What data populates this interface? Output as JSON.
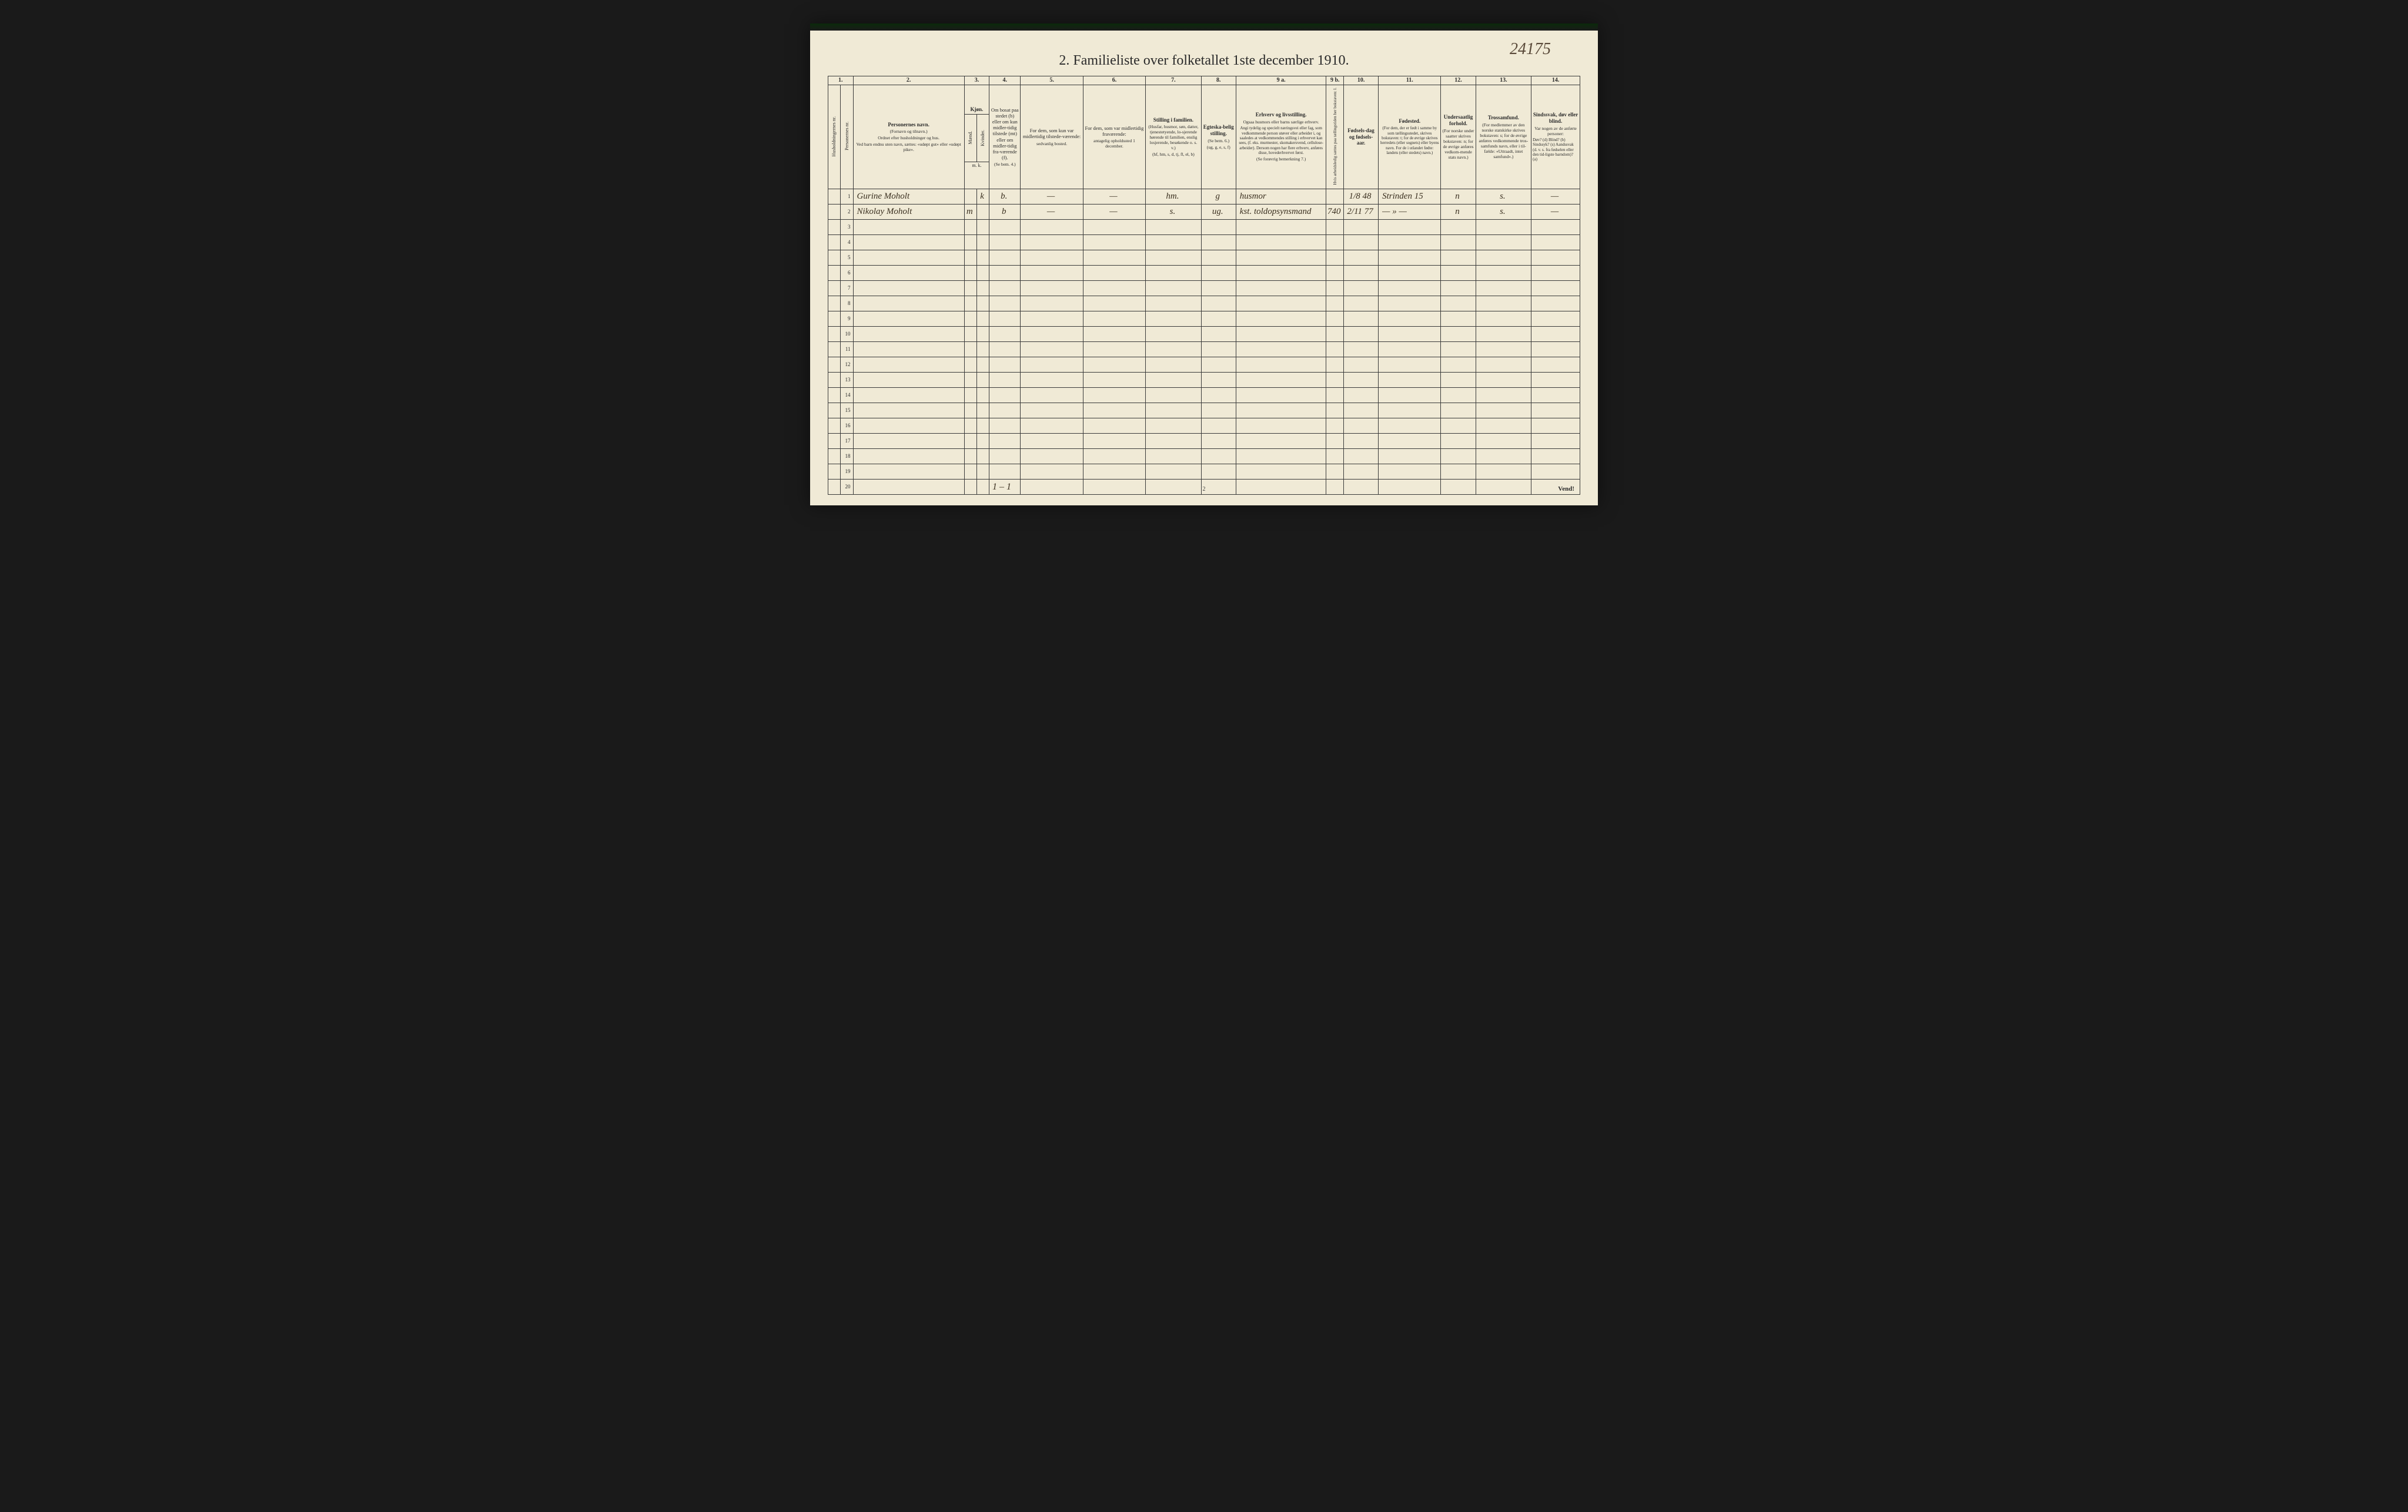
{
  "title": "2.  Familieliste over folketallet 1ste december 1910.",
  "top_annotation": "24175",
  "bottom_note": "1 – 1",
  "page_number": "2",
  "vend": "Vend!",
  "colors": {
    "paper": "#f0ead6",
    "ink": "#2a2a2a",
    "handwriting": "#3a2f1f",
    "border": "#3a3a3a",
    "background": "#1a1a1a"
  },
  "col_numbers": [
    "1.",
    "2.",
    "3.",
    "4.",
    "5.",
    "6.",
    "7.",
    "8.",
    "9 a.",
    "9 b.",
    "10.",
    "11.",
    "12.",
    "13.",
    "14."
  ],
  "headers": {
    "c1a": "Husholdningernes nr.",
    "c1b": "Personernes nr.",
    "c2_main": "Personernes navn.",
    "c2_sub1": "(Fornavn og tilnavn.)",
    "c2_sub2": "Ordnet efter husholdninger og hus.",
    "c2_sub3": "Ved barn endnu uten navn, sættes: «udøpt gut» eller «udøpt pike».",
    "c3_main": "Kjøn.",
    "c3a": "Mænd.",
    "c3b": "Kvinder.",
    "c3_sub": "m.  k.",
    "c4_main": "Om bosat paa stedet (b) eller om kun midler-tidig tilstede (mt) eller om midler-tidig fra-værende (f).",
    "c4_sub": "(Se bem. 4.)",
    "c5_main": "For dem, som kun var midlertidig tilstede-værende:",
    "c5_sub": "sedvanlig bosted.",
    "c6_main": "For dem, som var midlertidig fraværende:",
    "c6_sub": "antagelig opholdssted 1 december.",
    "c7_main": "Stilling i familien.",
    "c7_sub1": "(Husfar, husmor, søn, datter, tjenestetyende, lo-sjerende hørende til familien, enslig losjerende, besøkende o. s. v.)",
    "c7_sub2": "(hf, hm, s, d, tj, fl, el, b)",
    "c8_main": "Egteska-belig stilling.",
    "c8_sub1": "(Se bem. 6.)",
    "c8_sub2": "(ug, g, e, s, f)",
    "c9a_main": "Erhverv og livsstilling.",
    "c9a_sub1": "Ogsaa husmors eller barns særlige erhverv.",
    "c9a_sub2": "Angi tydelig og specielt næringsvei eller fag, som vedkommende person utøver eller arbeider i, og saaledes at vedkommendes stilling i erhvervet kan sees, (f. eks. murmester, skomakersvend, cellulose-arbeider). Dersom nogen har flere erhverv, anføres disse, hovederhvervet først.",
    "c9a_sub3": "(Se forøvrig bemerkning 7.)",
    "c9b": "Hvis arbeidsledig sættes paa tællingstiden her bokstaven: l.",
    "c10_main": "Fødsels-dag og fødsels-aar.",
    "c11_main": "Fødested.",
    "c11_sub": "(For dem, der er født i samme by som tællingsstedet, skrives bokstaven: t; for de øvrige skrives herredets (eller sognets) eller byens navn. For de i utlandet fødte: landets (eller stedets) navn.)",
    "c12_main": "Undersaatlig forhold.",
    "c12_sub": "(For norske under saatter skrives bokstaven: n; for de øvrige anføres vedkom-mende stats navn.)",
    "c13_main": "Trossamfund.",
    "c13_sub": "(For medlemmer av den norske statskirke skrives bokstaven: s; for de øvrige anføres vedkommende tros-samfunds navn, eller i til-fælde: «Uttraadt, intet samfund».)",
    "c14_main": "Sindssvak, døv eller blind.",
    "c14_sub1": "Var nogen av de anførte personer:",
    "c14_sub2": "Døv? (d)  Blind? (b)  Sindssyk? (s)  Aandssvak (d. v. s. fra fødselen eller den tid-ligste barndom)? (a)"
  },
  "rows": [
    {
      "n": "1",
      "name": "Gurine Moholt",
      "sex_m": "",
      "sex_k": "k",
      "bosat": "b.",
      "c5": "—",
      "c6": "—",
      "c7": "hm.",
      "c8": "g",
      "c9a": "husmor",
      "c9b": "",
      "c10": "1/8 48",
      "c11": "Strinden 15",
      "c12": "n",
      "c13": "s.",
      "c14": "—"
    },
    {
      "n": "2",
      "name": "Nikolay Moholt",
      "sex_m": "m",
      "sex_k": "",
      "bosat": "b",
      "c5": "—",
      "c6": "—",
      "c7": "s.",
      "c8": "ug.",
      "c9a": "kst. toldopsynsmand",
      "c9b": "740",
      "c10": "2/11 77",
      "c11": "— » —",
      "c12": "n",
      "c13": "s.",
      "c14": "—"
    }
  ],
  "empty_rows": [
    3,
    4,
    5,
    6,
    7,
    8,
    9,
    10,
    11,
    12,
    13,
    14,
    15,
    16,
    17,
    18,
    19,
    20
  ],
  "col_widths_pct": [
    1.8,
    1.8,
    16,
    1.8,
    1.8,
    4.5,
    9,
    9,
    8,
    5,
    13,
    2.5,
    5,
    9,
    5,
    8,
    7
  ]
}
